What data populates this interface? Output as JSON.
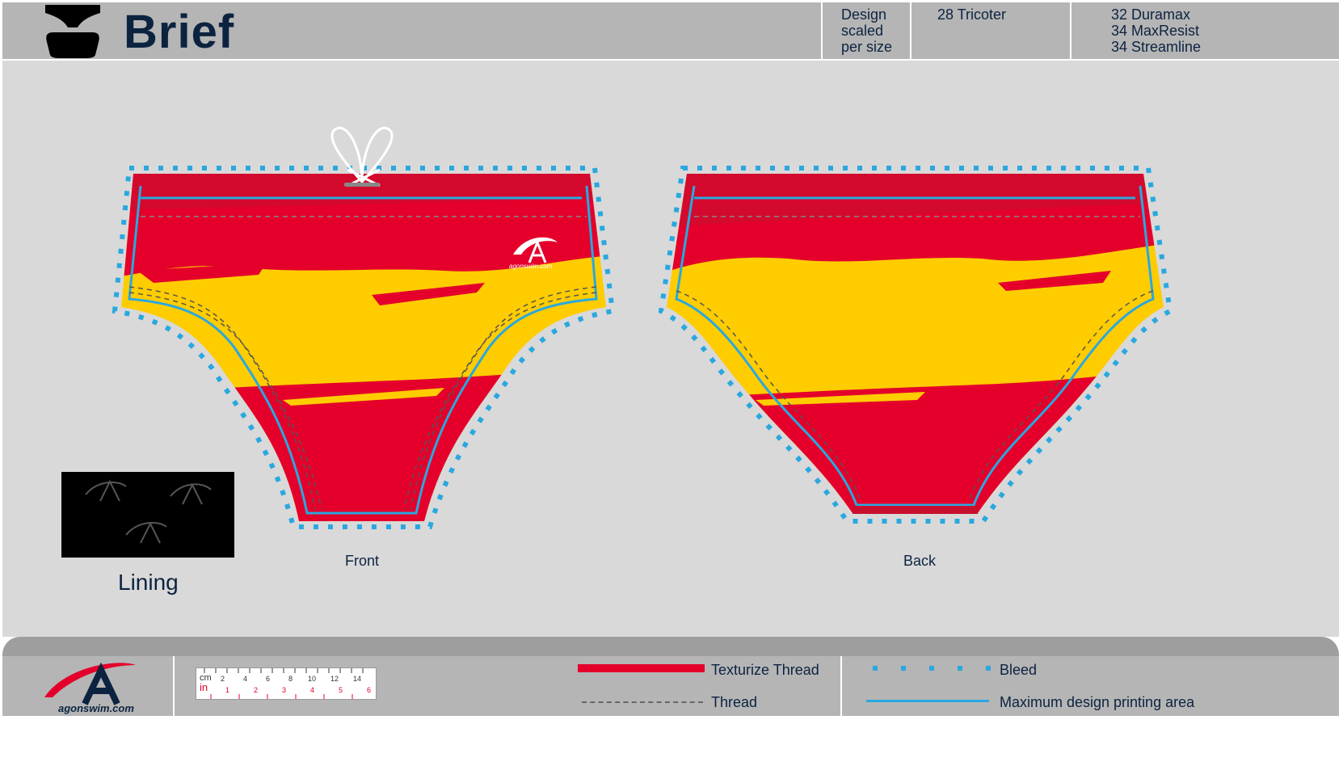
{
  "header": {
    "title": "Brief",
    "design_note": [
      "Design",
      "scaled",
      "per size"
    ],
    "fabric_1": "28 Tricoter",
    "fabric_2": [
      "32 Duramax",
      "34 MaxResist",
      "34 Streamline"
    ]
  },
  "views": {
    "front_label": "Front",
    "back_label": "Back",
    "lining_label": "Lining"
  },
  "logos": {
    "footer_logo_text": "agonswim.com",
    "garment_logo_text": "agonswim.com"
  },
  "ruler": {
    "cm_label": "cm",
    "in_label": "in",
    "cm_ticks": [
      "2",
      "4",
      "6",
      "8",
      "10",
      "12",
      "14"
    ],
    "in_ticks": [
      "1",
      "2",
      "3",
      "4",
      "5",
      "6"
    ]
  },
  "legend": {
    "texturize_thread": "Texturize Thread",
    "thread": "Thread",
    "bleed": "Bleed",
    "max_print_area": "Maximum design printing area"
  },
  "colors": {
    "navy": "#0c2340",
    "red": "#e4002b",
    "yellow": "#ffcc00",
    "bleed_blue": "#29a8df",
    "header_gray": "#b5b5b5",
    "canvas_gray": "#d9d9d9"
  }
}
